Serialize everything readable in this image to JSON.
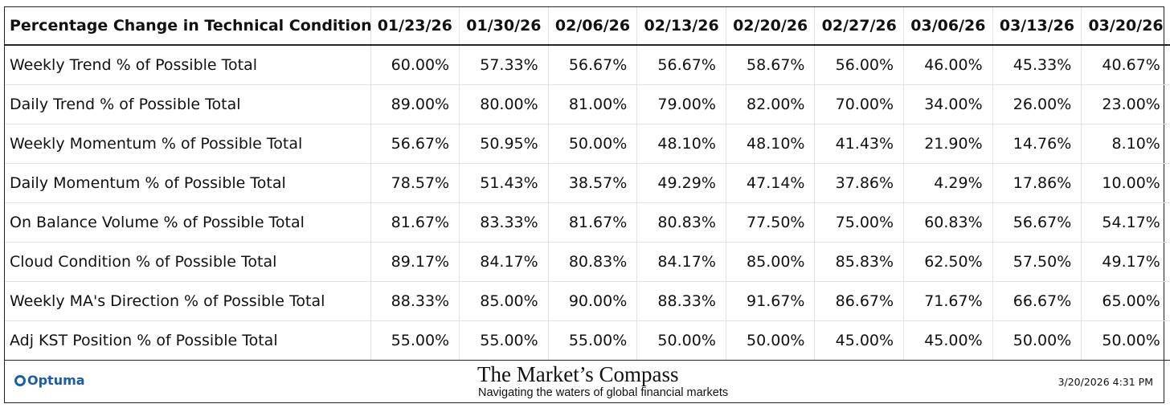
{
  "table": {
    "header": [
      "Percentage Change in Technical Condition",
      "01/23/26",
      "01/30/26",
      "02/06/26",
      "02/13/26",
      "02/20/26",
      "02/27/26",
      "03/06/26",
      "03/13/26",
      "03/20/26"
    ],
    "rows": [
      [
        "Weekly Trend % of Possible Total",
        "60.00%",
        "57.33%",
        "56.67%",
        "56.67%",
        "58.67%",
        "56.00%",
        "46.00%",
        "45.33%",
        "40.67%"
      ],
      [
        "Daily Trend % of Possible Total",
        "89.00%",
        "80.00%",
        "81.00%",
        "79.00%",
        "82.00%",
        "70.00%",
        "34.00%",
        "26.00%",
        "23.00%"
      ],
      [
        "Weekly Momentum % of Possible Total",
        "56.67%",
        "50.95%",
        "50.00%",
        "48.10%",
        "48.10%",
        "41.43%",
        "21.90%",
        "14.76%",
        "8.10%"
      ],
      [
        "Daily Momentum % of Possible Total",
        "78.57%",
        "51.43%",
        "38.57%",
        "49.29%",
        "47.14%",
        "37.86%",
        "4.29%",
        "17.86%",
        "10.00%"
      ],
      [
        "On Balance Volume % of Possible Total",
        "81.67%",
        "83.33%",
        "81.67%",
        "80.83%",
        "77.50%",
        "75.00%",
        "60.83%",
        "56.67%",
        "54.17%"
      ],
      [
        "Cloud Condition % of Possible Total",
        "89.17%",
        "84.17%",
        "80.83%",
        "84.17%",
        "85.00%",
        "85.83%",
        "62.50%",
        "57.50%",
        "49.17%"
      ],
      [
        "Weekly MA's Direction % of Possible Total",
        "88.33%",
        "85.00%",
        "90.00%",
        "88.33%",
        "91.67%",
        "86.67%",
        "71.67%",
        "66.67%",
        "65.00%"
      ],
      [
        "Adj KST Position % of Possible Total",
        "55.00%",
        "55.00%",
        "55.00%",
        "50.00%",
        "50.00%",
        "45.00%",
        "45.00%",
        "50.00%",
        "50.00%"
      ]
    ]
  },
  "footer": {
    "logo": "Optuma",
    "title": "The Market’s Compass",
    "subtitle": "Navigating the waters of global financial markets",
    "timestamp": "3/20/2026 4:31 PM"
  }
}
